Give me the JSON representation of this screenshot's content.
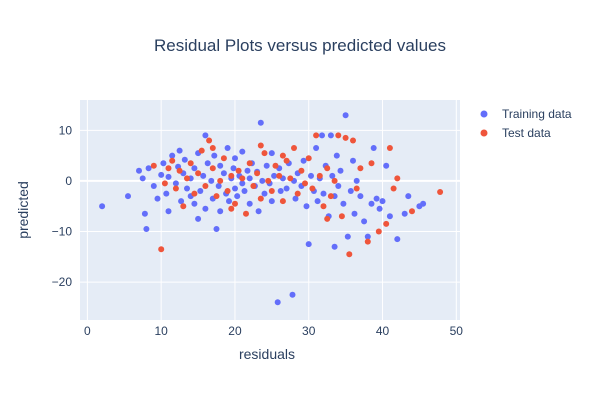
{
  "colors": {
    "plot_background": "#e5ecf6",
    "grid": "#ffffff",
    "training": "#636efa",
    "test": "#ef553b",
    "text": "#2a3f5f"
  },
  "chart_data": {
    "type": "scatter",
    "title": "Residual Plots versus predicted values",
    "xlabel": "residuals",
    "ylabel": "predicted",
    "xlim": [
      -1,
      50.5
    ],
    "ylim": [
      -27.5,
      16
    ],
    "xticks": [
      0,
      10,
      20,
      30,
      40,
      50
    ],
    "yticks": [
      -20,
      -10,
      0,
      10
    ],
    "grid": true,
    "legend_position": "top-right",
    "series": [
      {
        "name": "Training data",
        "color": "#636efa",
        "points": [
          [
            2,
            -5
          ],
          [
            5.5,
            -3
          ],
          [
            7,
            2
          ],
          [
            7.5,
            0.5
          ],
          [
            7.8,
            -6.5
          ],
          [
            8,
            -9.5
          ],
          [
            8.3,
            2.5
          ],
          [
            9,
            -1
          ],
          [
            9.5,
            -3.5
          ],
          [
            10,
            1.2
          ],
          [
            10.3,
            3.5
          ],
          [
            10.7,
            -2.5
          ],
          [
            11,
            0.8
          ],
          [
            11,
            -6
          ],
          [
            11.5,
            5
          ],
          [
            12,
            -0.5
          ],
          [
            12.3,
            2.8
          ],
          [
            12.7,
            -4
          ],
          [
            13,
            1.5
          ],
          [
            13.2,
            4.2
          ],
          [
            13.5,
            -1.5
          ],
          [
            14,
            0.5
          ],
          [
            14,
            -3
          ],
          [
            14.5,
            2.5
          ],
          [
            15,
            -7.5
          ],
          [
            15,
            5.5
          ],
          [
            15.3,
            -2
          ],
          [
            15.7,
            1
          ],
          [
            16,
            9
          ],
          [
            16,
            -5.5
          ],
          [
            16.3,
            3.5
          ],
          [
            16.8,
            0
          ],
          [
            17,
            -3.5
          ],
          [
            17.2,
            5
          ],
          [
            17.5,
            -9.5
          ],
          [
            17.8,
            -1
          ],
          [
            18,
            3
          ],
          [
            18,
            -6
          ],
          [
            18.5,
            1.5
          ],
          [
            18.8,
            -2.5
          ],
          [
            19,
            6.5
          ],
          [
            19.2,
            -4
          ],
          [
            19.5,
            0.5
          ],
          [
            19.8,
            2.5
          ],
          [
            20,
            -1.5
          ],
          [
            20,
            4.5
          ],
          [
            20.3,
            -3
          ],
          [
            20.6,
            1
          ],
          [
            21,
            -0.5
          ],
          [
            21,
            5.8
          ],
          [
            21.3,
            -2
          ],
          [
            21.7,
            2
          ],
          [
            22,
            -4.5
          ],
          [
            22,
            0.5
          ],
          [
            22.3,
            3.5
          ],
          [
            22.7,
            -1
          ],
          [
            23,
            1.8
          ],
          [
            23.2,
            -6
          ],
          [
            23.5,
            11.5
          ],
          [
            23.7,
            0
          ],
          [
            24,
            -2.5
          ],
          [
            24.3,
            3
          ],
          [
            24.7,
            -0.5
          ],
          [
            25,
            5.5
          ],
          [
            25,
            -4
          ],
          [
            25.3,
            1
          ],
          [
            25.8,
            -24
          ],
          [
            26,
            2.5
          ],
          [
            26.2,
            -2
          ],
          [
            26.5,
            0.5
          ],
          [
            27,
            -1.5
          ],
          [
            27.3,
            3.5
          ],
          [
            27.8,
            -22.5
          ],
          [
            28,
            0
          ],
          [
            28.2,
            -3.5
          ],
          [
            28.5,
            1.5
          ],
          [
            29,
            -1
          ],
          [
            29.3,
            4
          ],
          [
            29.7,
            -5
          ],
          [
            30,
            -12.5
          ],
          [
            30.3,
            1
          ],
          [
            30.7,
            -2
          ],
          [
            31,
            6.5
          ],
          [
            31.2,
            -4
          ],
          [
            31.5,
            0.5
          ],
          [
            31.8,
            9
          ],
          [
            32,
            -2.5
          ],
          [
            32.3,
            3
          ],
          [
            32.7,
            -7
          ],
          [
            33,
            9
          ],
          [
            33.2,
            1
          ],
          [
            33.5,
            -3
          ],
          [
            33.8,
            5
          ],
          [
            34,
            -1
          ],
          [
            34.3,
            2
          ],
          [
            34.7,
            -4.5
          ],
          [
            35,
            13
          ],
          [
            35.3,
            -11
          ],
          [
            35.7,
            -2
          ],
          [
            36,
            4
          ],
          [
            36.2,
            -6.5
          ],
          [
            36.5,
            0
          ],
          [
            37,
            -3
          ],
          [
            37.5,
            -8
          ],
          [
            38,
            -11
          ],
          [
            38.5,
            -4.5
          ],
          [
            38.8,
            6.5
          ],
          [
            39.2,
            -3.5
          ],
          [
            39.6,
            -5.5
          ],
          [
            40,
            -4
          ],
          [
            40.5,
            3
          ],
          [
            41,
            -7
          ],
          [
            42,
            -11.5
          ],
          [
            43,
            -6.5
          ],
          [
            43.5,
            -3
          ],
          [
            45,
            -5
          ],
          [
            45.5,
            -4.5
          ],
          [
            33.5,
            -13
          ],
          [
            12.5,
            6
          ],
          [
            14.5,
            -4.5
          ]
        ]
      },
      {
        "name": "Test data",
        "color": "#ef553b",
        "points": [
          [
            9,
            3
          ],
          [
            10,
            -13.5
          ],
          [
            10.5,
            -0.5
          ],
          [
            11.5,
            4
          ],
          [
            12,
            -1.5
          ],
          [
            12.5,
            2
          ],
          [
            13,
            -5
          ],
          [
            13.5,
            0.5
          ],
          [
            14,
            3.5
          ],
          [
            14.5,
            -2.5
          ],
          [
            15,
            1.5
          ],
          [
            15.5,
            6
          ],
          [
            16,
            -1
          ],
          [
            16.5,
            8
          ],
          [
            17,
            2.5
          ],
          [
            17.5,
            -3
          ],
          [
            18,
            0
          ],
          [
            18.5,
            4.5
          ],
          [
            19,
            -2
          ],
          [
            19.5,
            1
          ],
          [
            20,
            -4.5
          ],
          [
            20.5,
            2
          ],
          [
            21,
            0.5
          ],
          [
            21.5,
            -6.5
          ],
          [
            22,
            3.5
          ],
          [
            22.5,
            -1
          ],
          [
            23,
            1.5
          ],
          [
            23.5,
            -3.5
          ],
          [
            24,
            5.5
          ],
          [
            24.5,
            0
          ],
          [
            25,
            -2
          ],
          [
            25.5,
            3
          ],
          [
            26,
            1
          ],
          [
            26.5,
            -4
          ],
          [
            27,
            4
          ],
          [
            27.5,
            0.5
          ],
          [
            28,
            6.5
          ],
          [
            28.5,
            -2.5
          ],
          [
            29,
            2
          ],
          [
            29.5,
            -0.5
          ],
          [
            30,
            4.5
          ],
          [
            30.5,
            -1.5
          ],
          [
            31,
            9
          ],
          [
            31.5,
            1
          ],
          [
            32,
            -5
          ],
          [
            32.5,
            2.5
          ],
          [
            33,
            -3
          ],
          [
            33.5,
            0
          ],
          [
            34,
            9
          ],
          [
            34.5,
            -7
          ],
          [
            35,
            8.5
          ],
          [
            35.5,
            -14.5
          ],
          [
            36,
            8
          ],
          [
            36.5,
            -1.5
          ],
          [
            37,
            2.5
          ],
          [
            38,
            -12
          ],
          [
            38.5,
            3.5
          ],
          [
            39.5,
            -10
          ],
          [
            40.5,
            -8.5
          ],
          [
            41,
            6.5
          ],
          [
            41.5,
            -1.5
          ],
          [
            42,
            0.5
          ],
          [
            44,
            -6
          ],
          [
            47.8,
            -2.2
          ],
          [
            32.5,
            -7.5
          ],
          [
            26.5,
            5
          ],
          [
            23.5,
            7
          ],
          [
            19.5,
            -5.5
          ],
          [
            17,
            6.5
          ],
          [
            11,
            2.5
          ]
        ]
      }
    ]
  }
}
